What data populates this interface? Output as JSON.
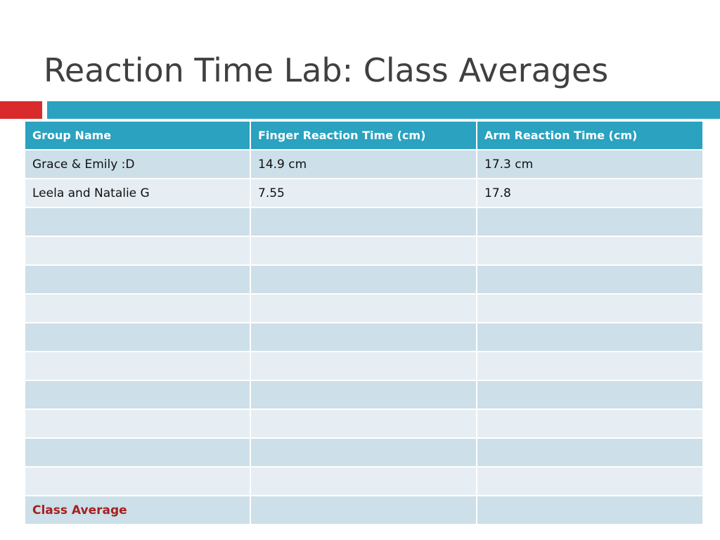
{
  "slide": {
    "title": "Reaction Time Lab: Class Averages"
  },
  "colors": {
    "title_text": "#404040",
    "accent_red": "#d92b2b",
    "accent_blue": "#2aa2c0",
    "header_background": "#2aa2c0",
    "row_band_dark": "#cddfe8",
    "row_band_light": "#e6eef4",
    "class_average_text": "#a52020"
  },
  "table": {
    "headers": [
      "Group Name",
      "Finger Reaction Time (cm)",
      "Arm Reaction Time (cm)"
    ],
    "rows": [
      [
        "Grace & Emily :D",
        "14.9 cm",
        "17.3 cm"
      ],
      [
        "Leela and Natalie G",
        "7.55",
        "17.8"
      ],
      [
        "",
        "",
        ""
      ],
      [
        "",
        "",
        ""
      ],
      [
        "",
        "",
        ""
      ],
      [
        "",
        "",
        ""
      ],
      [
        "",
        "",
        ""
      ],
      [
        "",
        "",
        ""
      ],
      [
        "",
        "",
        ""
      ],
      [
        "",
        "",
        ""
      ],
      [
        "",
        "",
        ""
      ],
      [
        "",
        "",
        ""
      ],
      [
        "Class Average",
        "",
        ""
      ]
    ]
  }
}
